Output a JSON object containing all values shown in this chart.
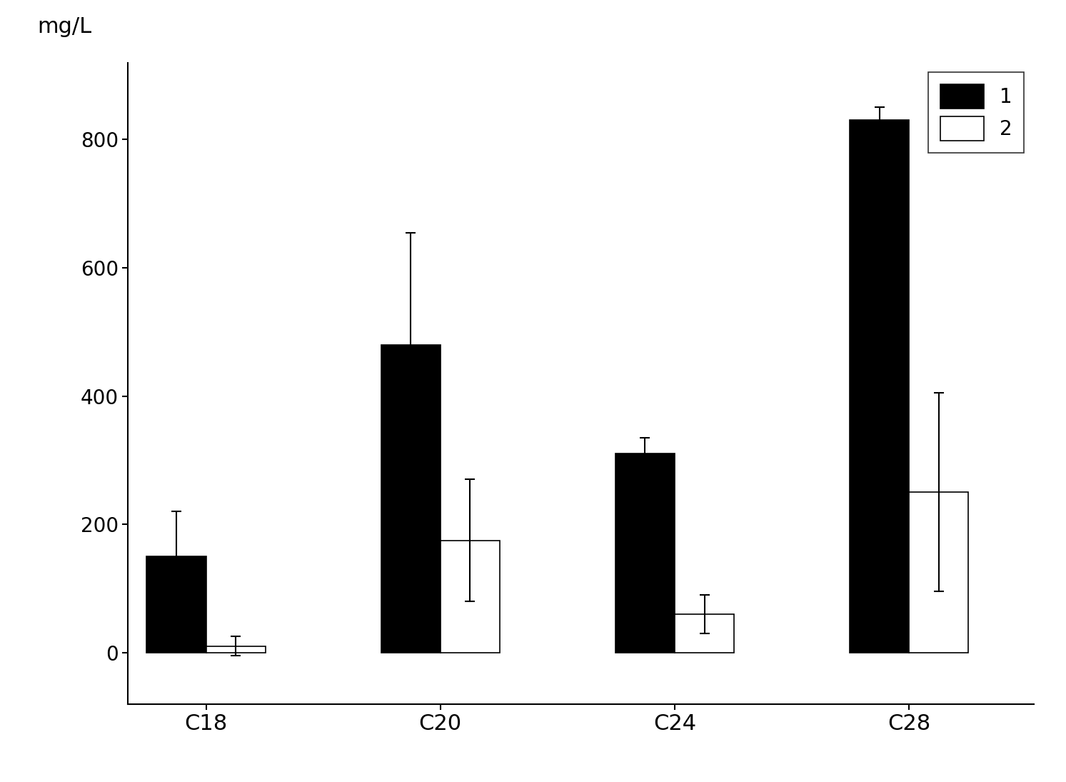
{
  "categories": [
    "C18",
    "C20",
    "C24",
    "C28"
  ],
  "bar1_values": [
    150,
    480,
    310,
    830
  ],
  "bar2_values": [
    10,
    175,
    60,
    250
  ],
  "bar1_errors": [
    70,
    175,
    25,
    20
  ],
  "bar2_errors": [
    15,
    95,
    30,
    155
  ],
  "bar1_color": "#000000",
  "bar2_color": "#ffffff",
  "bar_edgecolor": "#000000",
  "bar_width": 0.38,
  "ylabel": "mg/L",
  "ylim": [
    -80,
    920
  ],
  "yticks": [
    0,
    200,
    400,
    600,
    800
  ],
  "legend_labels": [
    "1",
    "2"
  ],
  "background_color": "#ffffff",
  "figure_width": 14.93,
  "figure_height": 10.95,
  "dpi": 100,
  "group_positions": [
    0.5,
    2.0,
    3.5,
    5.0
  ],
  "xlim": [
    0.0,
    5.8
  ]
}
